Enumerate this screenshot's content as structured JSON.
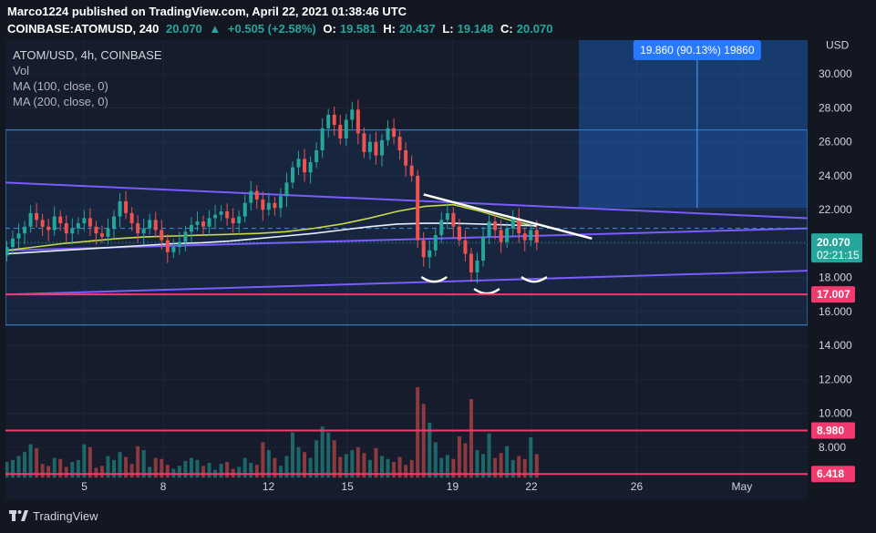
{
  "header": {
    "line1": "Marco1224 published on TradingView.com, April 22, 2021 01:38:46 UTC",
    "symbol": "COINBASE:ATOMUSD, 240",
    "last": "20.070",
    "change": "+0.505 (+2.58%)",
    "o_label": "O:",
    "o_value": "19.581",
    "h_label": "H:",
    "h_value": "20.437",
    "l_label": "L:",
    "l_value": "19.148",
    "c_label": "C:",
    "c_value": "20.070"
  },
  "legend": {
    "title": "ATOM/USD, 4h, COINBASE",
    "vol": "Vol",
    "ma100": "MA (100, close, 0)",
    "ma200": "MA (200, close, 0)"
  },
  "footer": {
    "brand": "TradingView"
  },
  "colors": {
    "up": "#26a69a",
    "down": "#ef5350",
    "ma100": "#c8d94a",
    "ma200": "#e6f0ff",
    "channel": "#7b5cff",
    "level": "#f23a6e",
    "box": "#1e6fd9"
  },
  "chart_data": {
    "type": "candlestick",
    "ylabel": "USD",
    "ylim": [
      6,
      32
    ],
    "y_ticks": [
      "8.000",
      "10.000",
      "12.000",
      "14.000",
      "16.000",
      "18.000",
      "20.000",
      "22.000",
      "24.000",
      "26.000",
      "28.000",
      "30.000"
    ],
    "x_ticks": [
      "5",
      "8",
      "12",
      "15",
      "19",
      "22",
      "26",
      "May"
    ],
    "x_tick_days": [
      5,
      8,
      12,
      15,
      19,
      22,
      26,
      30
    ],
    "xlim": [
      2,
      32.5
    ],
    "current_price": "20.070",
    "countdown": "02:21:15",
    "price_levels": [
      {
        "label": "17.007",
        "value": 17.007
      },
      {
        "label": "8.980",
        "value": 8.98
      },
      {
        "label": "6.418",
        "value": 6.418
      }
    ],
    "range_box": {
      "top": 26.7,
      "bottom": 15.2
    },
    "measure": {
      "label": "19.860 (90.13%) 19860",
      "from": 22.1,
      "to": 32.0
    },
    "candles_close": [
      19.8,
      20.3,
      20.6,
      21.0,
      21.8,
      21.4,
      21.0,
      20.8,
      21.6,
      21.2,
      20.6,
      20.9,
      21.2,
      21.5,
      21.0,
      20.6,
      20.4,
      20.9,
      21.6,
      22.5,
      21.8,
      21.2,
      20.6,
      20.9,
      21.4,
      20.8,
      20.2,
      19.5,
      19.8,
      20.1,
      20.7,
      21.1,
      21.3,
      21.0,
      21.5,
      21.7,
      21.9,
      21.5,
      21.2,
      21.6,
      22.4,
      23.1,
      22.6,
      22.0,
      22.4,
      22.1,
      22.8,
      23.6,
      24.5,
      25.0,
      24.2,
      24.8,
      25.5,
      26.8,
      27.6,
      27.0,
      26.2,
      27.3,
      27.9,
      26.5,
      25.4,
      26.0,
      25.2,
      26.1,
      26.8,
      26.3,
      25.5,
      24.6,
      24.0,
      20.2,
      19.2,
      19.6,
      20.5,
      21.4,
      21.8,
      21.0,
      20.2,
      19.4,
      18.3,
      19.0,
      20.4,
      21.3,
      20.8,
      20.1,
      20.9,
      21.5,
      20.6,
      20.2,
      20.8,
      20.07
    ],
    "volume": [
      1.6,
      1.8,
      2.2,
      2.6,
      3.4,
      3.0,
      1.4,
      1.2,
      2.0,
      1.9,
      1.1,
      1.6,
      1.8,
      3.4,
      3.1,
      1.0,
      1.2,
      2.2,
      1.8,
      2.6,
      2.1,
      1.4,
      3.2,
      2.8,
      1.1,
      2.0,
      1.9,
      1.3,
      0.9,
      1.2,
      1.7,
      2.0,
      1.8,
      1.2,
      1.5,
      0.8,
      1.4,
      1.6,
      0.9,
      1.1,
      2.0,
      1.5,
      1.3,
      3.6,
      2.8,
      2.0,
      1.2,
      2.2,
      4.6,
      3.1,
      2.6,
      2.0,
      3.8,
      5.2,
      4.6,
      3.8,
      2.1,
      2.4,
      2.8,
      3.1,
      2.5,
      1.8,
      3.0,
      2.2,
      1.9,
      1.6,
      2.1,
      1.3,
      1.8,
      9.2,
      7.5,
      5.6,
      3.6,
      2.0,
      2.3,
      1.9,
      4.2,
      3.5,
      8.0,
      2.8,
      2.4,
      4.5,
      2.0,
      2.5,
      3.2,
      1.8,
      2.2,
      1.9,
      4.1,
      2.4
    ],
    "ma100": [
      19.6,
      19.8,
      20.0,
      20.15,
      20.3,
      20.4,
      20.45,
      20.5,
      20.55,
      20.6,
      20.7,
      20.9,
      21.15,
      21.5,
      21.9,
      22.2,
      22.3,
      21.9,
      21.4,
      21.0
    ],
    "ma200": [
      19.4,
      19.5,
      19.6,
      19.7,
      19.8,
      19.9,
      20.0,
      20.05,
      20.15,
      20.3,
      20.45,
      20.6,
      20.8,
      21.0,
      21.15,
      21.2,
      21.2,
      21.15,
      21.1,
      21.05
    ]
  }
}
